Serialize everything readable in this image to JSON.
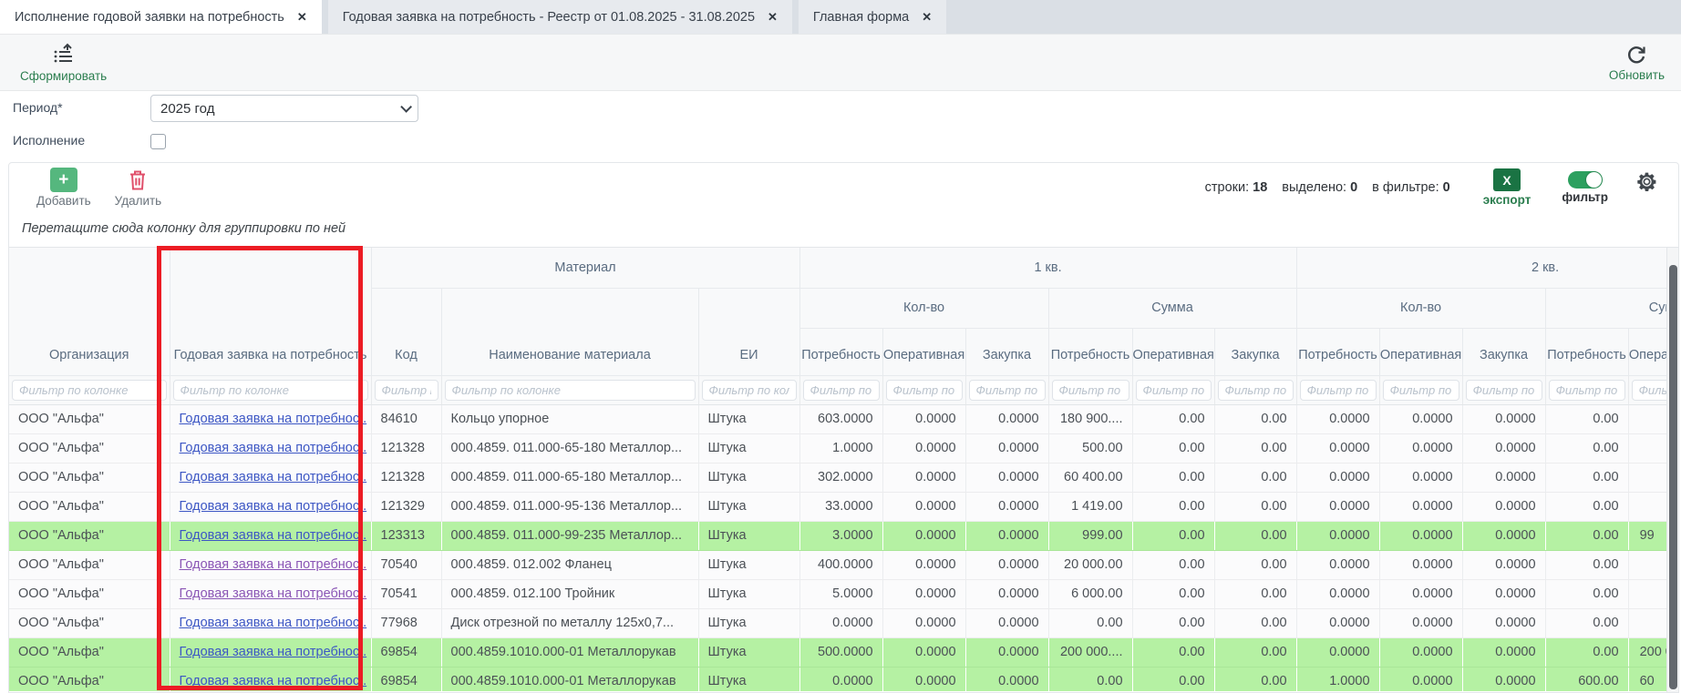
{
  "tabs": [
    {
      "label": "Исполнение годовой заявки на потребность",
      "active": true
    },
    {
      "label": "Годовая заявка на потребность - Реестр от 01.08.2025 - 31.08.2025",
      "active": false
    },
    {
      "label": "Главная форма",
      "active": false
    }
  ],
  "toolbar": {
    "generate_label": "Сформировать",
    "refresh_label": "Обновить"
  },
  "form": {
    "period_label": "Период*",
    "period_value": "2025 год",
    "execution_label": "Исполнение",
    "execution_checked": false
  },
  "grid_toolbar": {
    "add_label": "Добавить",
    "delete_label": "Удалить",
    "rows_label": "строки:",
    "rows_value": "18",
    "selected_label": "выделено:",
    "selected_value": "0",
    "filtered_label": "в фильтре:",
    "filtered_value": "0",
    "export_label": "экспорт",
    "export_icon_glyph": "X",
    "filter_label": "фильтр",
    "filter_toggle_on": true
  },
  "group_hint": "Перетащите сюда колонку для группировки по ней",
  "table": {
    "groups": {
      "material": "Материал",
      "q1": "1 кв.",
      "q2": "2 кв."
    },
    "subgroups": {
      "qty": "Кол-во",
      "sum": "Сумма"
    },
    "columns": {
      "org": "Организация",
      "request": "Годовая заявка на потребность",
      "code": "Код",
      "material_name": "Наименование материала",
      "unit": "ЕИ"
    },
    "metric_columns": [
      "Потребность",
      "Оперативная",
      "Закупка"
    ],
    "filter_placeholder": "Фильтр по колонке",
    "rows": [
      {
        "org": "ООО \"Альфа\"",
        "link": "Годовая заявка на потребнос..",
        "code": "84610",
        "name": "Кольцо упорное",
        "unit": "Штука",
        "highlighted": false,
        "visited": false,
        "values": [
          "603.0000",
          "0.0000",
          "0.0000",
          "180 900....",
          "0.00",
          "0.00",
          "0.0000",
          "0.0000",
          "0.0000",
          "0.00",
          ""
        ]
      },
      {
        "org": "ООО \"Альфа\"",
        "link": "Годовая заявка на потребнос..",
        "code": "121328",
        "name": "000.4859. 011.000-65-180 Металлор...",
        "unit": "Штука",
        "highlighted": false,
        "visited": false,
        "values": [
          "1.0000",
          "0.0000",
          "0.0000",
          "500.00",
          "0.00",
          "0.00",
          "0.0000",
          "0.0000",
          "0.0000",
          "0.00",
          ""
        ]
      },
      {
        "org": "ООО \"Альфа\"",
        "link": "Годовая заявка на потребнос..",
        "code": "121328",
        "name": "000.4859. 011.000-65-180 Металлор...",
        "unit": "Штука",
        "highlighted": false,
        "visited": false,
        "values": [
          "302.0000",
          "0.0000",
          "0.0000",
          "60 400.00",
          "0.00",
          "0.00",
          "0.0000",
          "0.0000",
          "0.0000",
          "0.00",
          ""
        ]
      },
      {
        "org": "ООО \"Альфа\"",
        "link": "Годовая заявка на потребнос..",
        "code": "121329",
        "name": "000.4859. 011.000-95-136 Металлор...",
        "unit": "Штука",
        "highlighted": false,
        "visited": false,
        "values": [
          "33.0000",
          "0.0000",
          "0.0000",
          "1 419.00",
          "0.00",
          "0.00",
          "0.0000",
          "0.0000",
          "0.0000",
          "0.00",
          ""
        ]
      },
      {
        "org": "ООО \"Альфа\"",
        "link": "Годовая заявка на потребнос..",
        "code": "123313",
        "name": "000.4859. 011.000-99-235 Металлор...",
        "unit": "Штука",
        "highlighted": true,
        "visited": false,
        "values": [
          "3.0000",
          "0.0000",
          "0.0000",
          "999.00",
          "0.00",
          "0.00",
          "0.0000",
          "0.0000",
          "0.0000",
          "0.00",
          "99"
        ]
      },
      {
        "org": "ООО \"Альфа\"",
        "link": "Годовая заявка на потребнос..",
        "code": "70540",
        "name": "000.4859. 012.002 Фланец",
        "unit": "Штука",
        "highlighted": false,
        "visited": true,
        "values": [
          "400.0000",
          "0.0000",
          "0.0000",
          "20 000.00",
          "0.00",
          "0.00",
          "0.0000",
          "0.0000",
          "0.0000",
          "0.00",
          ""
        ]
      },
      {
        "org": "ООО \"Альфа\"",
        "link": "Годовая заявка на потребнос..",
        "code": "70541",
        "name": "000.4859. 012.100 Тройник",
        "unit": "Штука",
        "highlighted": false,
        "visited": true,
        "values": [
          "5.0000",
          "0.0000",
          "0.0000",
          "6 000.00",
          "0.00",
          "0.00",
          "0.0000",
          "0.0000",
          "0.0000",
          "0.00",
          ""
        ]
      },
      {
        "org": "ООО \"Альфа\"",
        "link": "Годовая заявка на потребнос..",
        "code": "77968",
        "name": "Диск отрезной по металлу 125x0,7...",
        "unit": "Штука",
        "highlighted": false,
        "visited": false,
        "values": [
          "0.0000",
          "0.0000",
          "0.0000",
          "0.00",
          "0.00",
          "0.00",
          "0.0000",
          "0.0000",
          "0.0000",
          "0.00",
          ""
        ]
      },
      {
        "org": "ООО \"Альфа\"",
        "link": "Годовая заявка на потребнос..",
        "code": "69854",
        "name": "000.4859.1010.000-01 Металлорукав",
        "unit": "Штука",
        "highlighted": true,
        "visited": false,
        "values": [
          "500.0000",
          "0.0000",
          "0.0000",
          "200 000....",
          "0.00",
          "0.00",
          "0.0000",
          "0.0000",
          "0.0000",
          "0.00",
          "200 00"
        ]
      },
      {
        "org": "ООО \"Альфа\"",
        "link": "Годовая заявка на потребнос..",
        "code": "69854",
        "name": "000.4859.1010.000-01 Металлорукав",
        "unit": "Штука",
        "highlighted": true,
        "visited": false,
        "values": [
          "0.0000",
          "0.0000",
          "0.0000",
          "0.00",
          "0.00",
          "0.00",
          "1.0000",
          "0.0000",
          "0.0000",
          "600.00",
          "60"
        ]
      }
    ]
  },
  "colors": {
    "accent_green": "#2a7d4e",
    "add_green": "#55b77e",
    "delete_red": "#e0506b",
    "excel_green": "#1a7343",
    "toggle_green": "#2ca05f",
    "row_highlight": "#b5f1a3",
    "link_blue": "#3c56c4",
    "link_visited": "#8a55b5",
    "annotation_red": "#ec1c24"
  }
}
